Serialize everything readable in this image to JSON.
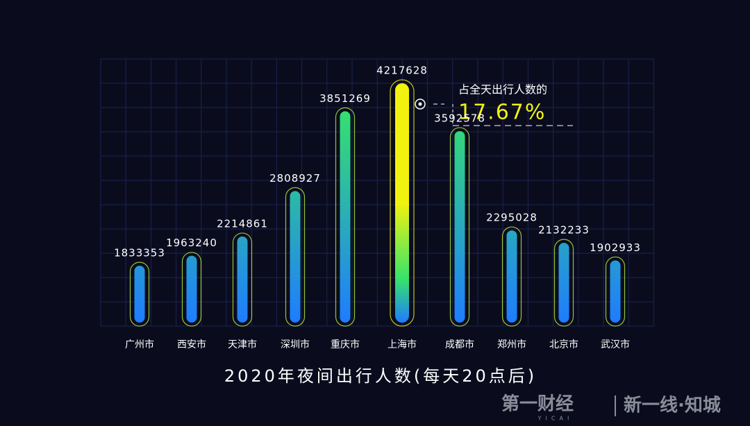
{
  "chart_data": {
    "type": "bar",
    "title": "2020年夜间出行人数(每天20点后)",
    "categories": [
      "广州市",
      "西安市",
      "天津市",
      "深圳市",
      "重庆市",
      "上海市",
      "成都市",
      "郑州市",
      "北京市",
      "武汉市"
    ],
    "values": [
      1833353,
      1963240,
      2214861,
      2808927,
      3851269,
      4217628,
      3592578,
      2295028,
      2132233,
      1902933
    ],
    "colors": {
      "bottom": "#1e7cff",
      "top": "#36e36a",
      "highlight": "#f2f20f",
      "outline": "#b8f23a"
    },
    "highlight_index": 5,
    "annotation": {
      "text": "占全天出行人数的",
      "value": "17.67%"
    },
    "grid": true
  },
  "branding": {
    "left": "第一财经",
    "left_sub": "YICAI",
    "right": "新一线·知城"
  }
}
